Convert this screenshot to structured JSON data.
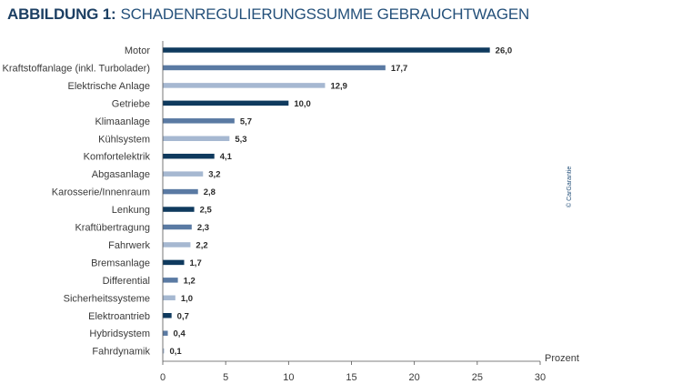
{
  "title": {
    "prefix": "ABBILDUNG 1:",
    "main": "SCHADENREGULIERUNGSSUMME GEBRAUCHTWAGEN"
  },
  "credit": "© CarGarantie",
  "colors": {
    "dark": "#0f3a5e",
    "medium": "#5a7aa3",
    "light": "#a6b8d1",
    "title": "#24507a",
    "axis": "#555555"
  },
  "chart_data": {
    "type": "bar",
    "orientation": "horizontal",
    "title": "SCHADENREGULIERUNGSSUMME GEBRAUCHTWAGEN",
    "xlabel": "Prozent",
    "ylabel": "",
    "xlim": [
      0,
      30
    ],
    "xticks": [
      "0",
      "5",
      "10",
      "15",
      "20",
      "25",
      "30"
    ],
    "grid": false,
    "categories": [
      "Motor",
      "Kraftstoffanlage (inkl. Turbolader)",
      "Elektrische Anlage",
      "Getriebe",
      "Klimaanlage",
      "Kühlsystem",
      "Komfortelektrik",
      "Abgasanlage",
      "Karosserie/Innenraum",
      "Lenkung",
      "Kraftübertragung",
      "Fahrwerk",
      "Bremsanlage",
      "Differential",
      "Sicherheitssysteme",
      "Elektroantrieb",
      "Hybridsystem",
      "Fahrdynamik"
    ],
    "values": [
      26.0,
      17.7,
      12.9,
      10.0,
      5.7,
      5.3,
      4.1,
      3.2,
      2.8,
      2.5,
      2.3,
      2.2,
      1.7,
      1.2,
      1.0,
      0.7,
      0.4,
      0.1
    ],
    "value_labels": [
      "26,0",
      "17,7",
      "12,9",
      "10,0",
      "5,7",
      "5,3",
      "4,1",
      "3,2",
      "2,8",
      "2,5",
      "2,3",
      "2,2",
      "1,7",
      "1,2",
      "1,0",
      "0,7",
      "0,4",
      "0,1"
    ],
    "bar_colors": [
      "dark",
      "medium",
      "light",
      "dark",
      "medium",
      "light",
      "dark",
      "light",
      "medium",
      "dark",
      "medium",
      "light",
      "dark",
      "medium",
      "light",
      "dark",
      "medium",
      "light"
    ]
  }
}
